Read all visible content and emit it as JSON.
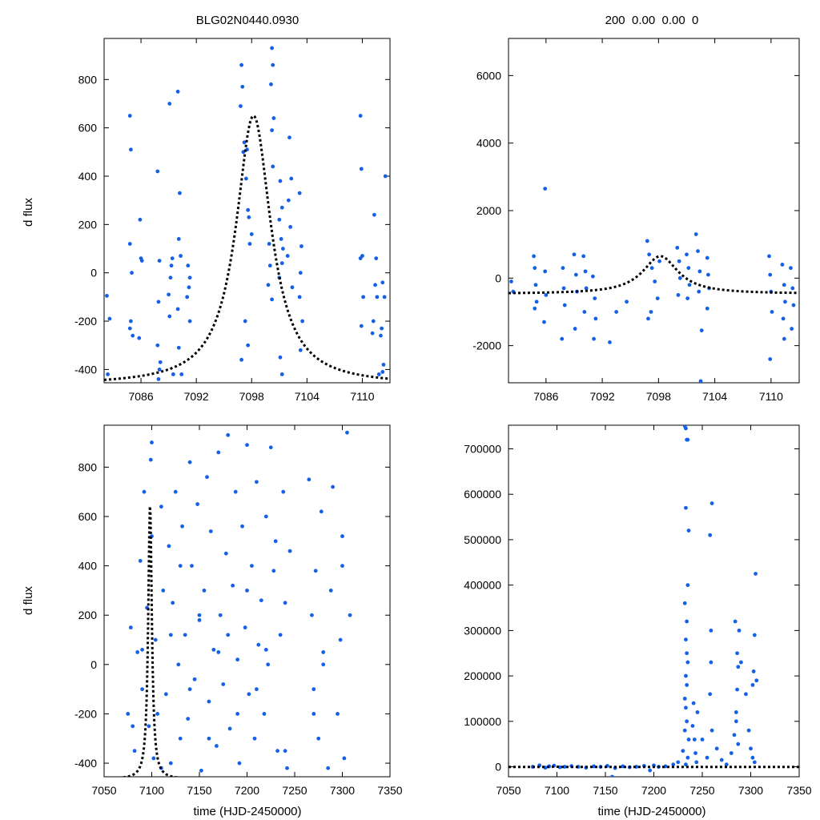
{
  "figure": {
    "title_left": "BLG02N0440.0930",
    "title_right": "200  0.00  0.00  0",
    "ylabel_top": "d flux",
    "ylabel_bottom": "d flux",
    "xlabel_bottom_left": "time (HJD-2450000)",
    "xlabel_bottom_right": "time (HJD-2450000)",
    "point_color": "#1460e6",
    "model_color": "#000000"
  },
  "chart_data": [
    {
      "id": "top-left",
      "type": "scatter",
      "xlim": [
        7082,
        7113
      ],
      "ylim": [
        -455,
        970
      ],
      "xticks": [
        7086,
        7092,
        7098,
        7104,
        7110
      ],
      "yticks": [
        -400,
        -200,
        0,
        200,
        400,
        600,
        800
      ],
      "model": {
        "type": "line",
        "style": "dotted",
        "t0": 7098.2,
        "tE": 2.3,
        "baseline": -465,
        "peak": 650
      },
      "points": {
        "x": [
          7082.3,
          7082.6,
          7082.4,
          7084.8,
          7084.9,
          7084.8,
          7084.9,
          7085.0,
          7085.1,
          7084.8,
          7085.9,
          7086.0,
          7085.8,
          7086.1,
          7087.8,
          7088.0,
          7087.9,
          7087.8,
          7088.1,
          7087.9,
          7088.0,
          7089.1,
          7089.3,
          7089.2,
          7089.4,
          7089.0,
          7089.1,
          7090.0,
          7090.2,
          7090.1,
          7090.3,
          7090.0,
          7090.1,
          7091.1,
          7091.3,
          7091.2,
          7091.0,
          7091.3,
          7089.5,
          7090.4,
          7096.9,
          7097.0,
          7097.2,
          7097.5,
          7097.7,
          7098.0,
          7096.8,
          7097.1,
          7097.4,
          7097.6,
          7097.8,
          7097.3,
          7097.6,
          7096.9,
          7100.2,
          7100.3,
          7100.1,
          7100.4,
          7100.2,
          7100.3,
          7101.1,
          7101.3,
          7101.0,
          7101.2,
          7101.4,
          7101.3,
          7101.0,
          7102.1,
          7102.3,
          7102.0,
          7102.2,
          7101.9,
          7102.4,
          7103.2,
          7103.4,
          7103.3,
          7103.2,
          7103.5,
          7103.3,
          7099.9,
          7100.0,
          7099.8,
          7100.2,
          7101.1,
          7101.3,
          7109.8,
          7109.9,
          7110.0,
          7109.8,
          7110.1,
          7111.3,
          7111.5,
          7111.4,
          7111.6,
          7111.2,
          7111.8,
          7112.1,
          7112.3,
          7112.2,
          7112.4,
          7112.0,
          7112.5,
          7112.2,
          7111.1,
          7109.9
        ],
        "y": [
          -95,
          -190,
          -420,
          650,
          510,
          120,
          -200,
          0,
          -260,
          -230,
          220,
          60,
          -270,
          50,
          420,
          50,
          -120,
          -300,
          -370,
          -440,
          -400,
          700,
          30,
          -20,
          60,
          -90,
          -180,
          750,
          330,
          140,
          70,
          -150,
          -310,
          30,
          -20,
          -60,
          -100,
          -200,
          -420,
          -420,
          860,
          770,
          540,
          510,
          230,
          160,
          690,
          500,
          390,
          260,
          120,
          -200,
          -300,
          -360,
          930,
          860,
          780,
          640,
          590,
          440,
          380,
          270,
          220,
          140,
          100,
          40,
          -20,
          560,
          390,
          300,
          190,
          70,
          -60,
          330,
          110,
          0,
          -100,
          -200,
          -320,
          120,
          30,
          -50,
          -110,
          -350,
          -420,
          650,
          430,
          70,
          60,
          -100,
          240,
          60,
          -50,
          -100,
          -200,
          -420,
          -230,
          -380,
          -40,
          -100,
          -260,
          400,
          -410,
          -250,
          -220
        ]
      }
    },
    {
      "id": "top-right",
      "type": "scatter",
      "xlim": [
        7082,
        7113
      ],
      "ylim": [
        -3100,
        7100
      ],
      "xticks": [
        7086,
        7092,
        7098,
        7104,
        7110
      ],
      "yticks": [
        -2000,
        0,
        2000,
        4000,
        6000
      ],
      "model": {
        "type": "line",
        "style": "dotted",
        "t0": 7098.2,
        "tE": 2.3,
        "baseline": -465,
        "peak": 650
      },
      "points": {
        "x": [
          7082.3,
          7082.5,
          7084.7,
          7084.8,
          7084.9,
          7085.0,
          7084.8,
          7085.9,
          7086.0,
          7085.8,
          7087.8,
          7087.9,
          7088.0,
          7087.7,
          7089.0,
          7089.2,
          7089.3,
          7089.1,
          7090.0,
          7090.2,
          7090.3,
          7090.1,
          7091.0,
          7091.2,
          7091.3,
          7091.1,
          7096.8,
          7097.0,
          7097.3,
          7097.6,
          7097.9,
          7098.1,
          7097.2,
          7096.9,
          7100.0,
          7100.2,
          7100.3,
          7100.1,
          7101.0,
          7101.2,
          7101.3,
          7101.1,
          7102.0,
          7102.2,
          7102.4,
          7102.3,
          7103.2,
          7103.3,
          7103.4,
          7103.2,
          7109.8,
          7109.9,
          7110.0,
          7110.1,
          7111.2,
          7111.4,
          7111.5,
          7111.3,
          7112.1,
          7112.3,
          7112.4,
          7112.2,
          7109.9,
          7111.4,
          7093.5,
          7094.6,
          7085.9,
          7092.8,
          7102.6,
          7102.5
        ],
        "y": [
          -100,
          -400,
          650,
          300,
          -200,
          -700,
          -900,
          200,
          -500,
          -1300,
          300,
          -300,
          -800,
          -1800,
          700,
          100,
          -400,
          -1500,
          650,
          200,
          -300,
          -1000,
          50,
          -600,
          -1200,
          -1800,
          1100,
          700,
          300,
          -100,
          -600,
          500,
          -1000,
          -1200,
          900,
          500,
          0,
          -500,
          700,
          300,
          -200,
          -600,
          1300,
          800,
          200,
          -400,
          600,
          100,
          -300,
          -900,
          650,
          100,
          -400,
          -1000,
          400,
          -200,
          -700,
          -1200,
          300,
          -300,
          -800,
          -1500,
          -2400,
          -1800,
          -1000,
          -700,
          2650,
          -1900,
          -1550,
          -3050
        ]
      }
    },
    {
      "id": "bottom-left",
      "type": "scatter",
      "xlim": [
        7050,
        7350
      ],
      "ylim": [
        -455,
        970
      ],
      "xticks": [
        7050,
        7100,
        7150,
        7200,
        7250,
        7300,
        7350
      ],
      "yticks": [
        -400,
        -200,
        0,
        200,
        400,
        600,
        800
      ],
      "model": {
        "type": "line",
        "style": "dotted",
        "t0": 7098.2,
        "tE": 2.3,
        "baseline": -465,
        "peak": 650
      },
      "points": {
        "x": [
          7075,
          7078,
          7082,
          7085,
          7088,
          7090,
          7092,
          7095,
          7097,
          7099,
          7100,
          7102,
          7104,
          7106,
          7110,
          7112,
          7115,
          7118,
          7120,
          7122,
          7125,
          7128,
          7130,
          7132,
          7135,
          7138,
          7140,
          7142,
          7145,
          7148,
          7150,
          7152,
          7155,
          7158,
          7160,
          7162,
          7165,
          7168,
          7170,
          7172,
          7175,
          7178,
          7180,
          7182,
          7185,
          7188,
          7190,
          7192,
          7195,
          7198,
          7200,
          7202,
          7205,
          7208,
          7210,
          7212,
          7215,
          7218,
          7220,
          7222,
          7225,
          7228,
          7232,
          7235,
          7238,
          7240,
          7242,
          7245,
          7265,
          7268,
          7270,
          7272,
          7275,
          7278,
          7280,
          7285,
          7288,
          7290,
          7295,
          7298,
          7300,
          7302,
          7305,
          7308,
          7080,
          7090,
          7100,
          7110,
          7120,
          7130,
          7140,
          7150,
          7160,
          7170,
          7180,
          7190,
          7200,
          7210,
          7220,
          7230,
          7240,
          7270,
          7280,
          7300
        ],
        "y": [
          -200,
          150,
          -350,
          50,
          420,
          -100,
          700,
          230,
          -250,
          830,
          520,
          -380,
          100,
          -200,
          640,
          300,
          -120,
          480,
          -400,
          250,
          700,
          0,
          -300,
          560,
          120,
          -220,
          820,
          400,
          -60,
          650,
          180,
          -430,
          300,
          760,
          -150,
          540,
          60,
          -330,
          860,
          200,
          -80,
          450,
          930,
          -260,
          320,
          700,
          20,
          -400,
          560,
          150,
          890,
          -120,
          400,
          -300,
          740,
          80,
          260,
          -200,
          600,
          0,
          880,
          380,
          -350,
          120,
          700,
          250,
          -420,
          460,
          750,
          200,
          -100,
          380,
          -300,
          620,
          50,
          -420,
          300,
          720,
          -200,
          100,
          520,
          -380,
          940,
          200,
          -250,
          60,
          900,
          -420,
          120,
          400,
          -100,
          200,
          -300,
          50,
          120,
          -200,
          300,
          -100,
          60,
          500,
          -350,
          -200,
          0,
          400
        ]
      }
    },
    {
      "id": "bottom-right",
      "type": "scatter",
      "xlim": [
        7050,
        7350
      ],
      "ylim": [
        -22000,
        752000
      ],
      "xticks": [
        7050,
        7100,
        7150,
        7200,
        7250,
        7300,
        7350
      ],
      "yticks": [
        0,
        100000,
        200000,
        300000,
        400000,
        500000,
        600000,
        700000
      ],
      "model": {
        "type": "line",
        "style": "dotted",
        "t0": 7098.2,
        "tE": 2.3,
        "baseline": -465,
        "peak": 650
      },
      "points": {
        "x": [
          7075,
          7082,
          7088,
          7092,
          7097,
          7103,
          7108,
          7115,
          7122,
          7130,
          7138,
          7145,
          7152,
          7160,
          7168,
          7175,
          7182,
          7190,
          7196,
          7200,
          7205,
          7212,
          7220,
          7225,
          7230,
          7232,
          7233,
          7234,
          7235,
          7233,
          7234,
          7232,
          7235,
          7236,
          7233,
          7234,
          7232,
          7233,
          7235,
          7234,
          7233,
          7232,
          7234,
          7236,
          7235,
          7233,
          7240,
          7241,
          7242,
          7243,
          7244,
          7245,
          7250,
          7255,
          7258,
          7259,
          7260,
          7258,
          7259,
          7260,
          7265,
          7270,
          7275,
          7280,
          7283,
          7285,
          7286,
          7287,
          7288,
          7284,
          7286,
          7285,
          7287,
          7290,
          7295,
          7298,
          7300,
          7302,
          7303,
          7304,
          7305,
          7306,
          7302,
          7304,
          7157
        ],
        "y": [
          0,
          3000,
          -2000,
          1000,
          2500,
          -1000,
          0,
          1500,
          0,
          -2000,
          1000,
          0,
          2000,
          -3000,
          1000,
          -1000,
          0,
          2000,
          -8000,
          3000,
          0,
          1000,
          5000,
          10000,
          35000,
          80000,
          130000,
          180000,
          230000,
          280000,
          320000,
          360000,
          400000,
          520000,
          570000,
          720000,
          750000,
          745000,
          720000,
          250000,
          200000,
          150000,
          100000,
          60000,
          20000,
          5000,
          90000,
          140000,
          60000,
          30000,
          10000,
          120000,
          60000,
          20000,
          160000,
          300000,
          580000,
          510000,
          230000,
          80000,
          40000,
          15000,
          5000,
          30000,
          70000,
          120000,
          170000,
          220000,
          300000,
          320000,
          250000,
          100000,
          50000,
          230000,
          160000,
          80000,
          40000,
          180000,
          210000,
          290000,
          425000,
          190000,
          20000,
          10000,
          -22000
        ]
      }
    }
  ]
}
